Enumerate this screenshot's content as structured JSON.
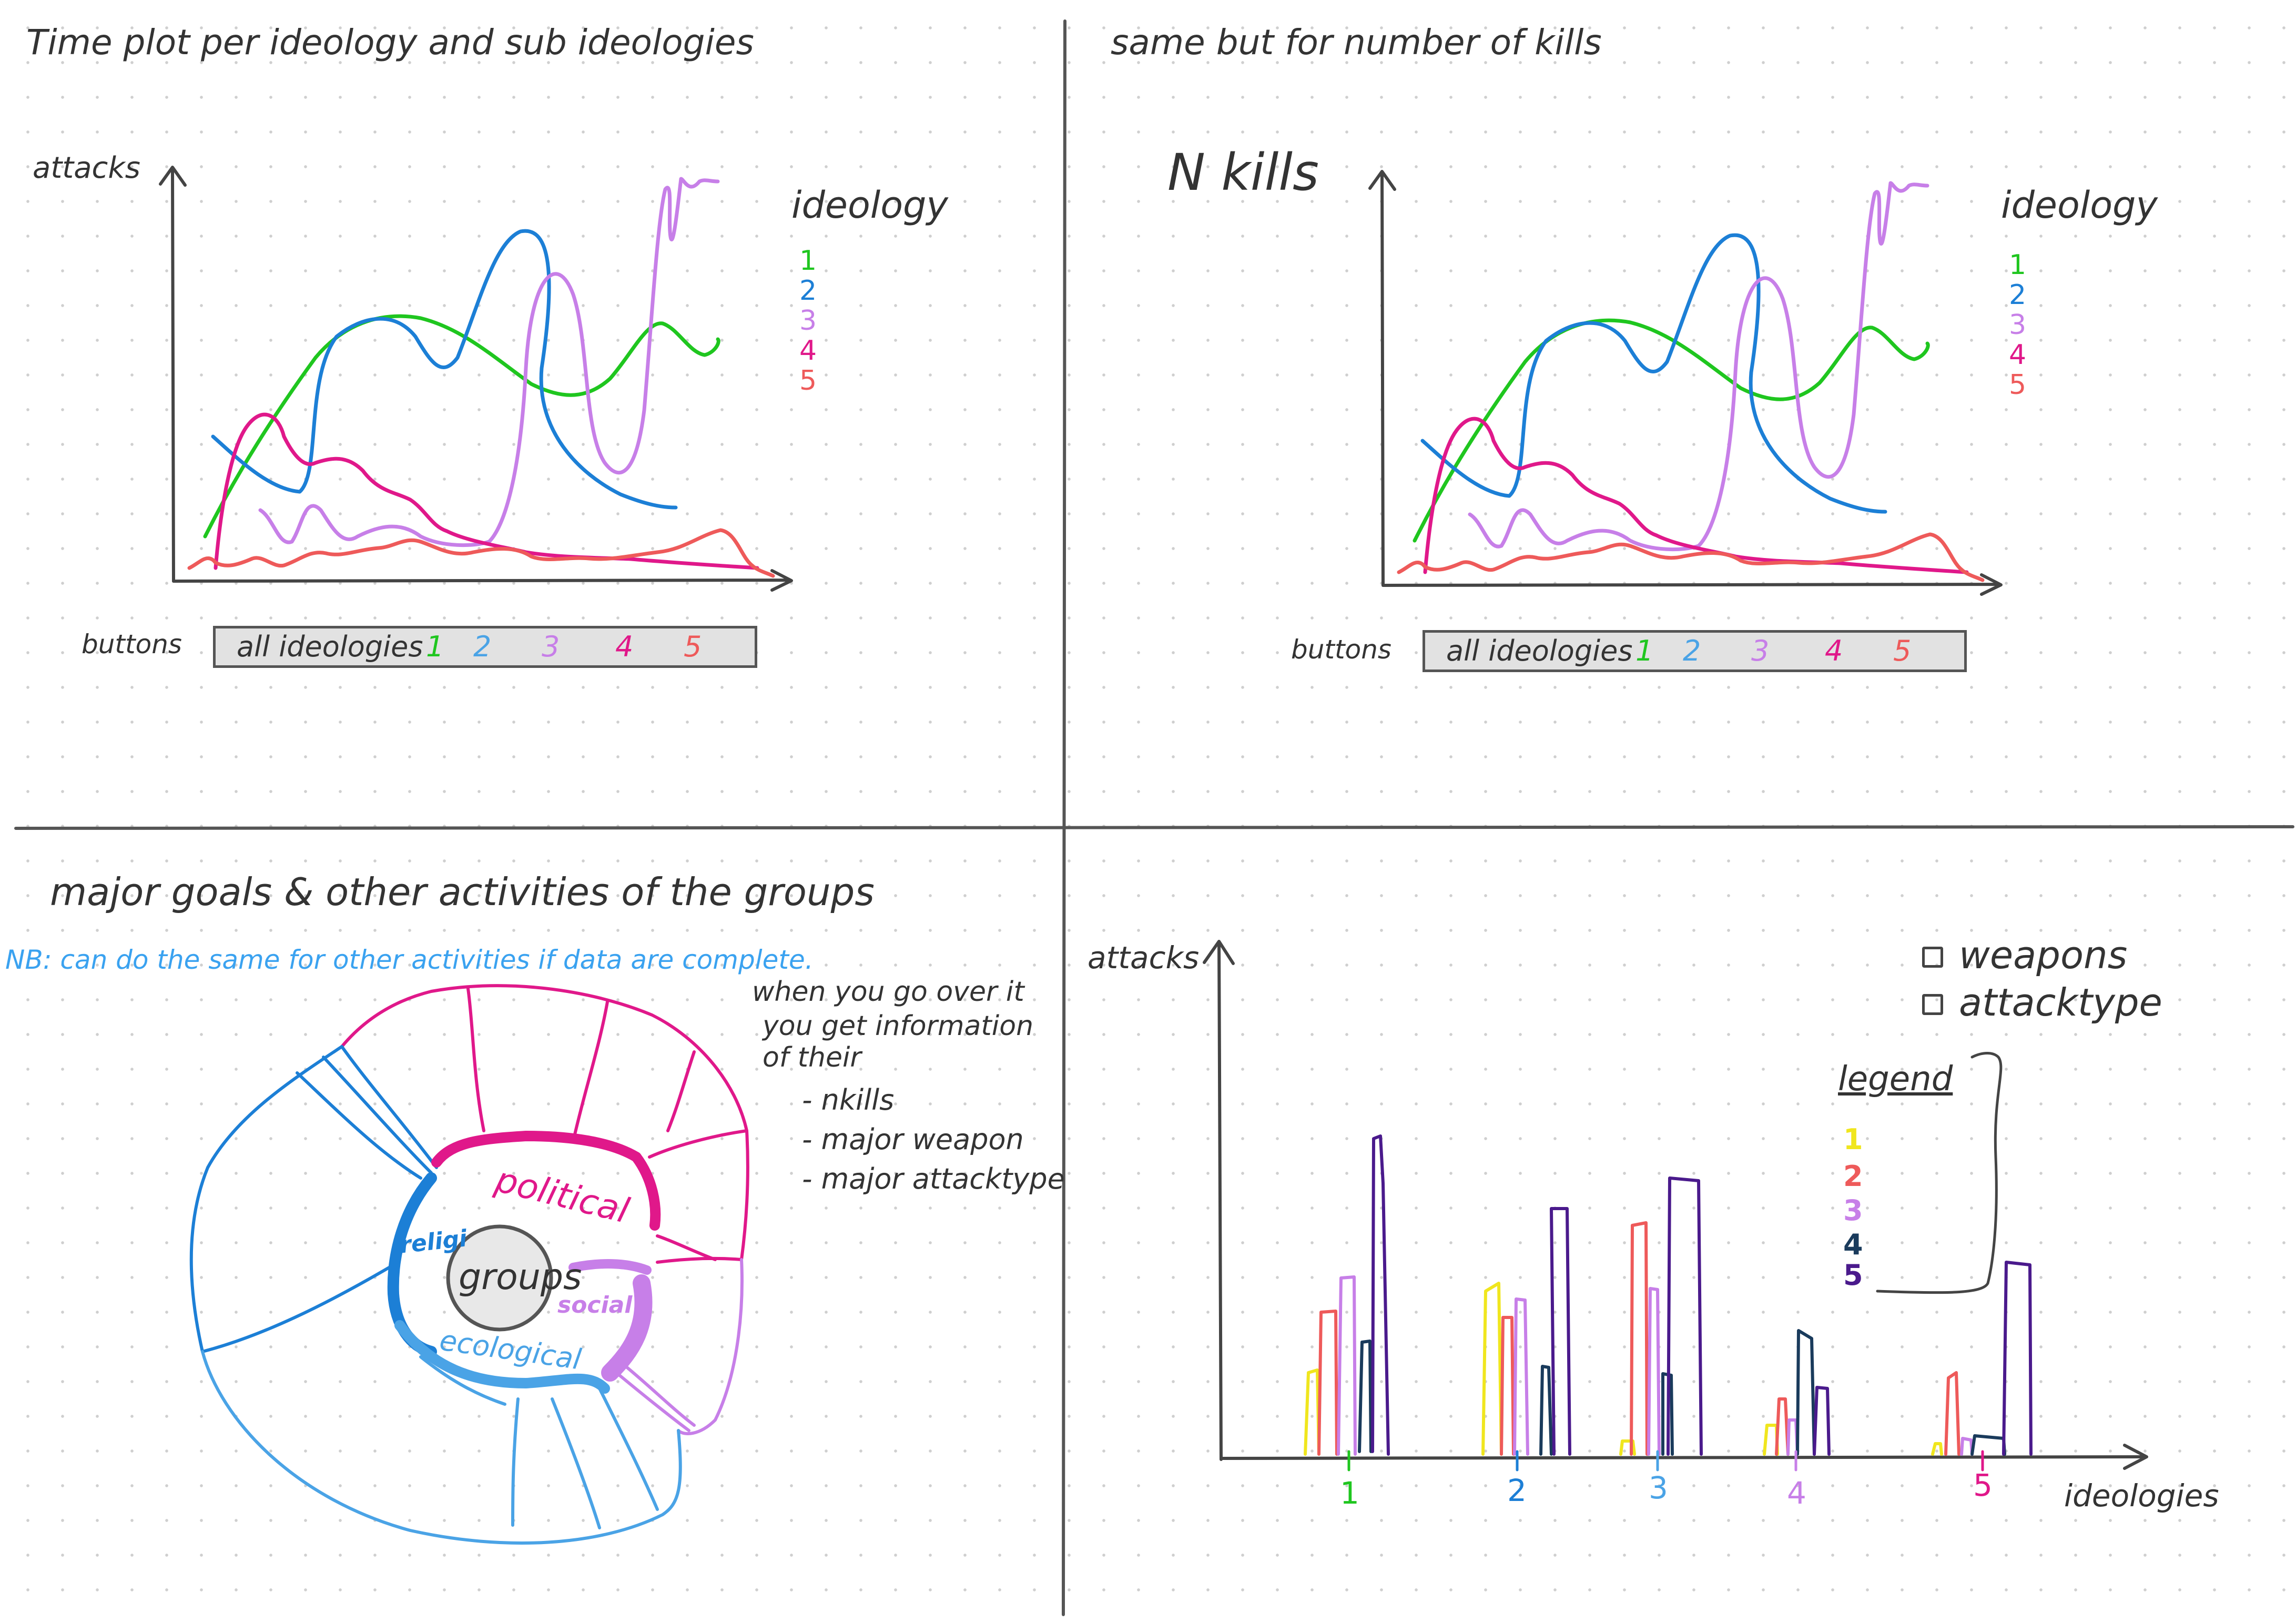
{
  "colors": {
    "ideology_1": "#1fc61f",
    "ideology_2": "#1c7fd6",
    "ideology_3": "#c77fe8",
    "ideology_4": "#e0188a",
    "ideology_5": "#ee5a5a",
    "religious": "#1c7fd6",
    "political": "#e0188a",
    "social": "#c77fe8",
    "ecological": "#4aa3e6",
    "note": "#3aa2f0",
    "legend_1": "#f0e61e",
    "legend_2": "#ee5a5a",
    "legend_3": "#c77fe8",
    "legend_4": "#1a3b5c",
    "legend_5": "#4a1a8c"
  },
  "panel_tl": {
    "title": "Time plot per ideology and sub ideologies",
    "ylabel": "attacks",
    "legend_title": "ideology",
    "legend_items": [
      "1",
      "2",
      "3",
      "4",
      "5"
    ],
    "buttons_label": "buttons",
    "buttons": [
      "all ideologies",
      "1",
      "2",
      "3",
      "4",
      "5"
    ]
  },
  "panel_tr": {
    "title": "same but for number of kills",
    "ylabel": "N kills",
    "legend_title": "ideology",
    "legend_items": [
      "1",
      "2",
      "3",
      "4",
      "5"
    ],
    "buttons_label": "buttons",
    "buttons": [
      "all ideologies",
      "1",
      "2",
      "3",
      "4",
      "5"
    ]
  },
  "panel_bl": {
    "title": "major goals & other activities of the groups",
    "note": "NB: can do the same for other activities if data are complete.",
    "center": "groups",
    "segments": [
      "religi",
      "political",
      "social",
      "ecological"
    ],
    "hover_text": [
      "when you go over it",
      "you get information",
      "of their"
    ],
    "hover_items": [
      "- nkills",
      "- major weapon",
      "- major attacktype"
    ]
  },
  "panel_br": {
    "ylabel": "attacks",
    "xlabel": "ideologies",
    "x_ticks": [
      "1",
      "2",
      "3",
      "4",
      "5"
    ],
    "checkboxes": [
      "weapons",
      "attacktype"
    ],
    "legend_title": "legend",
    "legend_items": [
      "1",
      "2",
      "3",
      "4",
      "5"
    ]
  }
}
